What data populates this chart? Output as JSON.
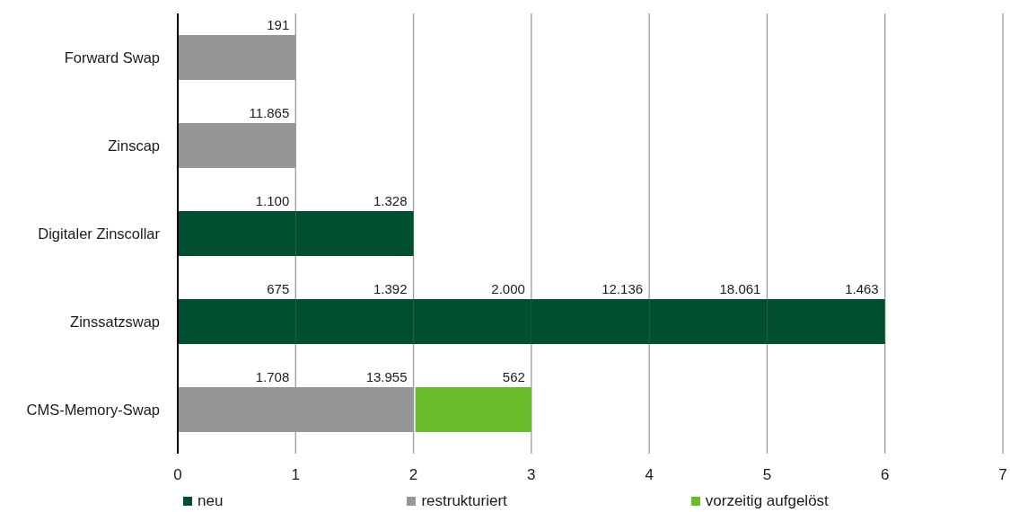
{
  "chart_data": {
    "type": "bar",
    "orientation": "horizontal",
    "stacked": true,
    "categories": [
      "Forward Swap",
      "Zinscap",
      "Digitaler Zinscollar",
      "Zinssatzswap",
      "CMS-Memory-Swap"
    ],
    "series": [
      {
        "name": "neu",
        "color": "#00502f",
        "values": [
          null,
          null,
          1,
          1,
          null
        ]
      },
      {
        "name": "restrukturiert",
        "color": "#969696",
        "values": [
          1,
          1,
          null,
          null,
          1
        ]
      },
      {
        "color": "#00502f",
        "values": [
          null,
          null,
          1,
          1,
          null
        ]
      },
      {
        "color": "#969696",
        "values": [
          null,
          null,
          null,
          null,
          1
        ]
      },
      {
        "name": "vorzeitig aufgelöst",
        "color": "#6abd2a",
        "values": [
          null,
          null,
          null,
          null,
          1
        ]
      },
      {
        "color": "#00502f",
        "values": [
          null,
          null,
          null,
          1,
          null
        ]
      },
      {
        "color": "#00502f",
        "values": [
          null,
          null,
          null,
          1,
          null
        ]
      },
      {
        "color": "#00502f",
        "values": [
          null,
          null,
          null,
          1,
          null
        ]
      },
      {
        "color": "#00502f",
        "values": [
          null,
          null,
          null,
          1,
          null
        ]
      }
    ],
    "annotations": [
      {
        "text": "191",
        "x": 1,
        "y": "Forward Swap"
      },
      {
        "text": "11.865",
        "x": 1,
        "y": "Zinscap"
      },
      {
        "text": "1.100",
        "x": 1,
        "y": "Digitaler Zinscollar"
      },
      {
        "text": "1.328",
        "x": 2,
        "y": "Digitaler Zinscollar"
      },
      {
        "text": "675",
        "x": 1,
        "y": "Zinssatzswap"
      },
      {
        "text": "1.392",
        "x": 2,
        "y": "Zinssatzswap"
      },
      {
        "text": "2.000",
        "x": 3,
        "y": "Zinssatzswap"
      },
      {
        "text": "12.136",
        "x": 4,
        "y": "Zinssatzswap"
      },
      {
        "text": "18.061",
        "x": 5,
        "y": "Zinssatzswap"
      },
      {
        "text": "1.463",
        "x": 6,
        "y": "Zinssatzswap"
      },
      {
        "text": "1.708",
        "x": 1,
        "y": "CMS-Memory-Swap"
      },
      {
        "text": "13.955",
        "x": 2,
        "y": "CMS-Memory-Swap"
      },
      {
        "text": "562",
        "x": 3,
        "y": "CMS-Memory-Swap"
      }
    ],
    "xlim": [
      0,
      7
    ],
    "xticks": [
      0,
      1,
      2,
      3,
      4,
      5,
      6,
      7
    ],
    "grid": "x",
    "legend": "bottom"
  }
}
